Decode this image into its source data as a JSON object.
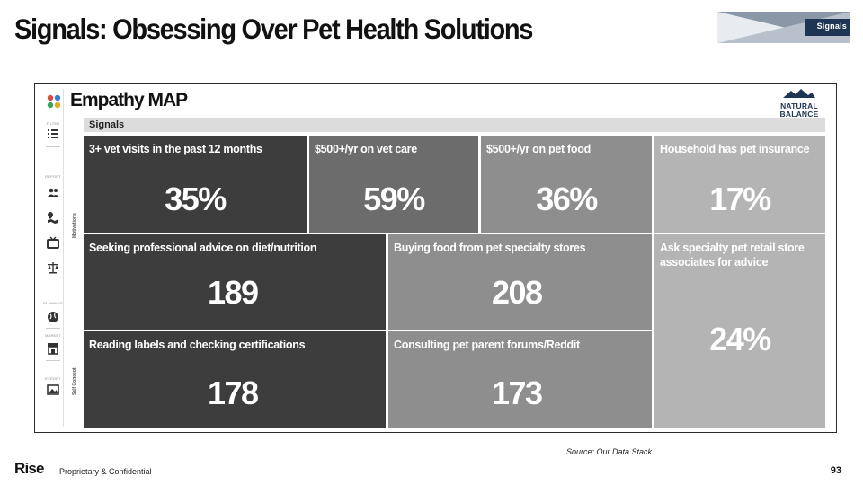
{
  "slide": {
    "title": "Signals: Obsessing Over Pet Health Solutions",
    "brand_tag": "Signals"
  },
  "app": {
    "title": "Empathy MAP",
    "partner_logo": {
      "line1": "NATURAL",
      "line2": "BALANCE"
    },
    "section_bar": "Signals",
    "side_rail": {
      "sections": [
        {
          "label": "FILTER",
          "icons": [
            "filter-list-icon"
          ]
        },
        {
          "label": "REPORT",
          "icons": [
            "users-icon",
            "map-pin-icon",
            "tv-icon",
            "scale-icon"
          ]
        },
        {
          "label": "PLANNING",
          "icons": [
            "globe-icon"
          ]
        },
        {
          "label": "MARKET",
          "icons": [
            "storefront-icon"
          ]
        },
        {
          "label": "EXPORT",
          "icons": [
            "image-icon"
          ]
        }
      ],
      "vertical_labels": [
        "Motivations",
        "Self Concept"
      ]
    }
  },
  "tiles": [
    {
      "label": "3+ vet visits in the past 12 months",
      "value": "35%",
      "color": "#3d3d3d"
    },
    {
      "label": "$500+/yr on vet care",
      "value": "59%",
      "color": "#6c6c6c"
    },
    {
      "label": "$500+/yr on pet food",
      "value": "36%",
      "color": "#8e8e8e"
    },
    {
      "label": "Household has pet insurance",
      "value": "17%",
      "color": "#b4b4b4"
    },
    {
      "label": "Seeking professional advice on diet/nutrition",
      "value": "189",
      "color": "#3d3d3d"
    },
    {
      "label": "Buying food from pet specialty stores",
      "value": "208",
      "color": "#8e8e8e"
    },
    {
      "label": "Ask specialty pet retail store associates for advice",
      "value": "24%",
      "color": "#b4b4b4"
    },
    {
      "label": "Reading labels and checking certifications",
      "value": "178",
      "color": "#3d3d3d"
    },
    {
      "label": "Consulting pet parent forums/Reddit",
      "value": "173",
      "color": "#8e8e8e"
    }
  ],
  "footer": {
    "source": "Source: Our Data Stack",
    "brand": "Rise",
    "confidential": "Proprietary & Confidential",
    "page_number": "93"
  }
}
